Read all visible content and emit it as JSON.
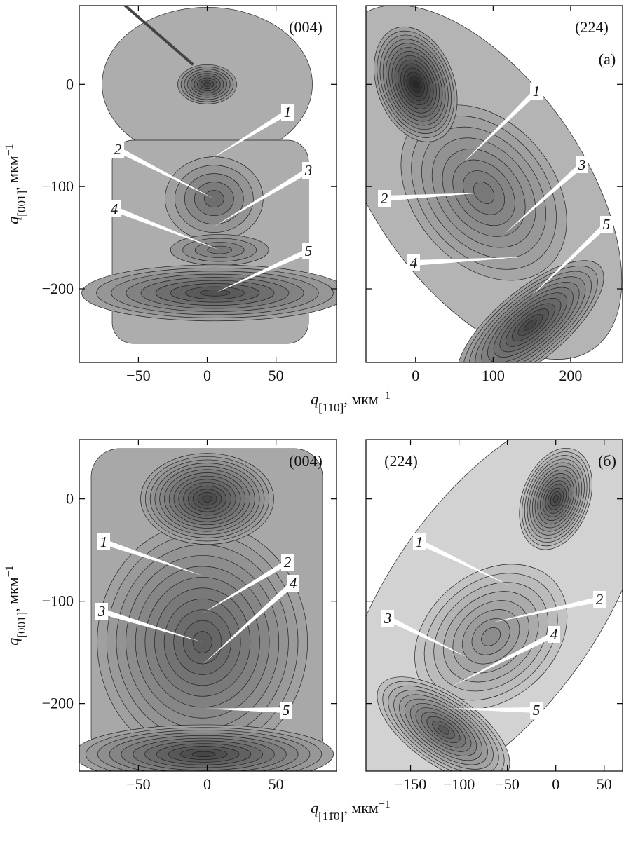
{
  "chart_data": [
    {
      "type": "contour",
      "title": "(004)",
      "xlim": [
        -93,
        94
      ],
      "xticks": [
        {
          "value": -50,
          "label": "−50"
        },
        0,
        50
      ],
      "ylim": [
        -272,
        77
      ],
      "yticks": [
        {
          "value": -200,
          "label": "−200"
        },
        {
          "value": -100,
          "label": "−100"
        },
        0
      ],
      "show_yticklabels": true,
      "xlabel": {
        "symbol": "q",
        "index": "[110]",
        "unit": ", мкм",
        "power": "−1"
      },
      "ylabel": {
        "symbol": "q",
        "index": "[001]",
        "unit": ", мкм",
        "power": "−1"
      },
      "points": [
        {
          "label": "1",
          "x": 1.5,
          "y": -74
        },
        {
          "label": "2",
          "x": 5,
          "y": -112
        },
        {
          "label": "3",
          "x": 4,
          "y": -140
        },
        {
          "label": "4",
          "x": 9,
          "y": -162
        },
        {
          "label": "5",
          "x": 5.6,
          "y": -204
        }
      ]
    },
    {
      "type": "contour",
      "title": "(224)",
      "panel_label": "(a)",
      "xlim": [
        -64,
        267
      ],
      "xticks": [
        0,
        100,
        200
      ],
      "ylim": [
        -272,
        77
      ],
      "yticks": [
        -200,
        -100,
        0
      ],
      "show_yticklabels": false,
      "points": [
        {
          "label": "1",
          "x": 61,
          "y": -77
        },
        {
          "label": "2",
          "x": 88,
          "y": -106
        },
        {
          "label": "3",
          "x": 115,
          "y": -146
        },
        {
          "label": "4",
          "x": 138,
          "y": -169
        },
        {
          "label": "5",
          "x": 148,
          "y": -208
        }
      ]
    },
    {
      "type": "contour",
      "title": "(004)",
      "xlim": [
        -93,
        94
      ],
      "xticks": [
        {
          "value": -50,
          "label": "−50"
        },
        0,
        50
      ],
      "ylim": [
        -266,
        58
      ],
      "yticks": [
        {
          "value": -200,
          "label": "−200"
        },
        {
          "value": -100,
          "label": "−100"
        },
        0
      ],
      "show_yticklabels": true,
      "xlabel": {
        "symbol": "q",
        "index": "[11̄0]",
        "unit": ", мкм",
        "power": "−1"
      },
      "ylabel": {
        "symbol": "q",
        "index": "[001]",
        "unit": ", мкм",
        "power": "−1"
      },
      "points": [
        {
          "label": "1",
          "x": -3.5,
          "y": -75
        },
        {
          "label": "2",
          "x": -3.5,
          "y": -112
        },
        {
          "label": "3",
          "x": -3.5,
          "y": -140
        },
        {
          "label": "4",
          "x": -3.5,
          "y": -162
        },
        {
          "label": "5",
          "x": -2.5,
          "y": -205
        }
      ]
    },
    {
      "type": "contour",
      "title": "(224)",
      "panel_label": "(б)",
      "xlim": [
        -196,
        69
      ],
      "xticks": [
        {
          "value": -150,
          "label": "−150"
        },
        {
          "value": -100,
          "label": "−100"
        },
        {
          "value": -50,
          "label": "−50"
        },
        0,
        50
      ],
      "ylim": [
        -266,
        58
      ],
      "yticks": [
        -200,
        -100,
        0
      ],
      "show_yticklabels": false,
      "points": [
        {
          "label": "1",
          "x": -47,
          "y": -85
        },
        {
          "label": "2",
          "x": -67,
          "y": -121
        },
        {
          "label": "3",
          "x": -91,
          "y": -155
        },
        {
          "label": "4",
          "x": -109,
          "y": -184
        },
        {
          "label": "5",
          "x": -116,
          "y": -205
        }
      ]
    }
  ]
}
